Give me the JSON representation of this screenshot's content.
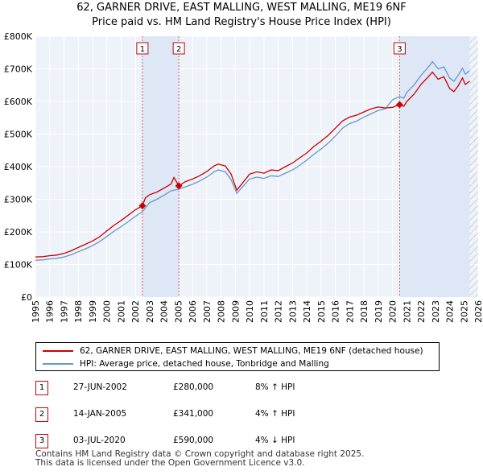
{
  "header": {
    "title": "62, GARNER DRIVE, EAST MALLING, WEST MALLING, ME19 6NF",
    "subtitle": "Price paid vs. HM Land Registry's House Price Index (HPI)"
  },
  "chart_data": {
    "type": "line",
    "title": "62, GARNER DRIVE, EAST MALLING, WEST MALLING, ME19 6NF",
    "subtitle": "Price paid vs. HM Land Registry's House Price Index (HPI)",
    "xlim": [
      1995,
      2026
    ],
    "ylim": [
      0,
      800000
    ],
    "yticks": [
      0,
      100000,
      200000,
      300000,
      400000,
      500000,
      600000,
      700000,
      800000
    ],
    "ytick_labels": [
      "£0",
      "£100K",
      "£200K",
      "£300K",
      "£400K",
      "£500K",
      "£600K",
      "£700K",
      "£800K"
    ],
    "xticks": [
      1995,
      1996,
      1997,
      1998,
      1999,
      2000,
      2001,
      2002,
      2003,
      2004,
      2005,
      2006,
      2007,
      2008,
      2009,
      2010,
      2011,
      2012,
      2013,
      2014,
      2015,
      2016,
      2017,
      2018,
      2019,
      2020,
      2021,
      2022,
      2023,
      2024,
      2025,
      2026
    ],
    "grid": true,
    "shaded_regions": [
      [
        2002.49,
        2005.04
      ],
      [
        2020.5,
        2025.4
      ]
    ],
    "hatched_region": [
      2025.4,
      2026
    ],
    "series": [
      {
        "name": "62, GARNER DRIVE, EAST MALLING, WEST MALLING, ME19 6NF (detached house)",
        "color": "#cc0000",
        "points": [
          [
            1995,
            123000
          ],
          [
            1995.5,
            124000
          ],
          [
            1996,
            127000
          ],
          [
            1996.5,
            129000
          ],
          [
            1997,
            134000
          ],
          [
            1997.5,
            142000
          ],
          [
            1998,
            152000
          ],
          [
            1998.5,
            162000
          ],
          [
            1999,
            172000
          ],
          [
            1999.5,
            185000
          ],
          [
            2000,
            203000
          ],
          [
            2000.5,
            220000
          ],
          [
            2001,
            235000
          ],
          [
            2001.5,
            251000
          ],
          [
            2002,
            268000
          ],
          [
            2002.49,
            280000
          ],
          [
            2002.7,
            304000
          ],
          [
            2003,
            314000
          ],
          [
            2003.5,
            322000
          ],
          [
            2004,
            334000
          ],
          [
            2004.5,
            347000
          ],
          [
            2004.7,
            367000
          ],
          [
            2005.04,
            341000
          ],
          [
            2005.5,
            354000
          ],
          [
            2006,
            362000
          ],
          [
            2006.5,
            372000
          ],
          [
            2007,
            385000
          ],
          [
            2007.5,
            402000
          ],
          [
            2007.8,
            408000
          ],
          [
            2008.3,
            402000
          ],
          [
            2008.7,
            377000
          ],
          [
            2009.1,
            328000
          ],
          [
            2009.5,
            350000
          ],
          [
            2010,
            377000
          ],
          [
            2010.5,
            384000
          ],
          [
            2011,
            380000
          ],
          [
            2011.5,
            390000
          ],
          [
            2012,
            388000
          ],
          [
            2012.5,
            400000
          ],
          [
            2013,
            411000
          ],
          [
            2013.5,
            427000
          ],
          [
            2014,
            442000
          ],
          [
            2014.5,
            462000
          ],
          [
            2015,
            478000
          ],
          [
            2015.5,
            496000
          ],
          [
            2016,
            518000
          ],
          [
            2016.5,
            540000
          ],
          [
            2017,
            552000
          ],
          [
            2017.5,
            558000
          ],
          [
            2018,
            568000
          ],
          [
            2018.5,
            577000
          ],
          [
            2019,
            583000
          ],
          [
            2019.5,
            580000
          ],
          [
            2020,
            582000
          ],
          [
            2020.5,
            590000
          ],
          [
            2020.8,
            585000
          ],
          [
            2021,
            600000
          ],
          [
            2021.5,
            622000
          ],
          [
            2022,
            652000
          ],
          [
            2022.5,
            675000
          ],
          [
            2022.8,
            690000
          ],
          [
            2023.2,
            668000
          ],
          [
            2023.6,
            676000
          ],
          [
            2024,
            640000
          ],
          [
            2024.3,
            630000
          ],
          [
            2024.6,
            648000
          ],
          [
            2024.9,
            672000
          ],
          [
            2025.1,
            652000
          ],
          [
            2025.4,
            662000
          ]
        ]
      },
      {
        "name": "HPI: Average price, detached house, Tonbridge and Malling",
        "color": "#6a96c8",
        "points": [
          [
            1995,
            113000
          ],
          [
            1995.5,
            114000
          ],
          [
            1996,
            117000
          ],
          [
            1996.5,
            119000
          ],
          [
            1997,
            123000
          ],
          [
            1997.5,
            130000
          ],
          [
            1998,
            139000
          ],
          [
            1998.5,
            148000
          ],
          [
            1999,
            158000
          ],
          [
            1999.5,
            170000
          ],
          [
            2000,
            186000
          ],
          [
            2000.5,
            202000
          ],
          [
            2001,
            216000
          ],
          [
            2001.5,
            231000
          ],
          [
            2002,
            248000
          ],
          [
            2002.5,
            262000
          ],
          [
            2003,
            290000
          ],
          [
            2003.5,
            300000
          ],
          [
            2004,
            312000
          ],
          [
            2004.5,
            326000
          ],
          [
            2005,
            330000
          ],
          [
            2005.5,
            338000
          ],
          [
            2006,
            346000
          ],
          [
            2006.5,
            356000
          ],
          [
            2007,
            368000
          ],
          [
            2007.5,
            384000
          ],
          [
            2007.8,
            390000
          ],
          [
            2008.3,
            384000
          ],
          [
            2008.7,
            360000
          ],
          [
            2009.1,
            318000
          ],
          [
            2009.5,
            338000
          ],
          [
            2010,
            362000
          ],
          [
            2010.5,
            368000
          ],
          [
            2011,
            364000
          ],
          [
            2011.5,
            372000
          ],
          [
            2012,
            370000
          ],
          [
            2012.5,
            380000
          ],
          [
            2013,
            390000
          ],
          [
            2013.5,
            404000
          ],
          [
            2014,
            420000
          ],
          [
            2014.5,
            438000
          ],
          [
            2015,
            454000
          ],
          [
            2015.5,
            472000
          ],
          [
            2016,
            494000
          ],
          [
            2016.5,
            518000
          ],
          [
            2017,
            532000
          ],
          [
            2017.5,
            540000
          ],
          [
            2018,
            552000
          ],
          [
            2018.5,
            562000
          ],
          [
            2019,
            572000
          ],
          [
            2019.5,
            578000
          ],
          [
            2020,
            605000
          ],
          [
            2020.5,
            615000
          ],
          [
            2020.8,
            610000
          ],
          [
            2021,
            628000
          ],
          [
            2021.5,
            650000
          ],
          [
            2022,
            680000
          ],
          [
            2022.5,
            705000
          ],
          [
            2022.8,
            722000
          ],
          [
            2023.2,
            700000
          ],
          [
            2023.6,
            706000
          ],
          [
            2024,
            672000
          ],
          [
            2024.3,
            662000
          ],
          [
            2024.6,
            680000
          ],
          [
            2024.9,
            702000
          ],
          [
            2025.1,
            684000
          ],
          [
            2025.4,
            694000
          ]
        ]
      }
    ],
    "annotations": [
      {
        "label": "1",
        "x": 2002.49,
        "y": 280000
      },
      {
        "label": "2",
        "x": 2005.04,
        "y": 341000
      },
      {
        "label": "3",
        "x": 2020.5,
        "y": 590000
      }
    ]
  },
  "legend": {
    "items": [
      {
        "label": "62, GARNER DRIVE, EAST MALLING, WEST MALLING, ME19 6NF (detached house)",
        "color": "#cc0000"
      },
      {
        "label": "HPI: Average price, detached house, Tonbridge and Malling",
        "color": "#6a96c8"
      }
    ]
  },
  "sales": [
    {
      "num": "1",
      "date": "27-JUN-2002",
      "price": "£280,000",
      "hpi": "8% ↑ HPI"
    },
    {
      "num": "2",
      "date": "14-JAN-2005",
      "price": "£341,000",
      "hpi": "4% ↑ HPI"
    },
    {
      "num": "3",
      "date": "03-JUL-2020",
      "price": "£590,000",
      "hpi": "4% ↓ HPI"
    }
  ],
  "footer": {
    "line1": "Contains HM Land Registry data © Crown copyright and database right 2025.",
    "line2": "This data is licensed under the Open Government Licence v3.0."
  }
}
